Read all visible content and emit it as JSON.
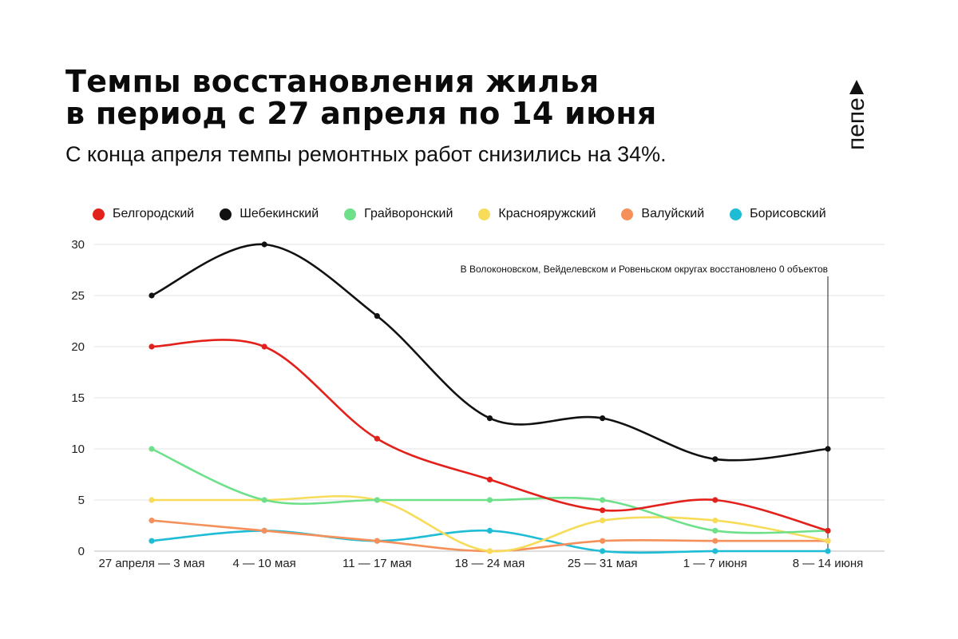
{
  "header": {
    "title_line1": "Темпы восстановления жилья",
    "title_line2": "в период с 27 апреля по 14 июня",
    "subtitle": "С конца апреля темпы ремонтных работ снизились на 34%.",
    "logo_text": "пепе"
  },
  "chart_data": {
    "type": "line",
    "title": "Темпы восстановления жилья в период с 27 апреля по 14 июня",
    "subtitle": "С конца апреля темпы ремонтных работ снизились на 34%.",
    "categories": [
      "27 апреля — 3 мая",
      "4 — 10 мая",
      "11 — 17 мая",
      "18 — 24 мая",
      "25 — 31 мая",
      "1 — 7 июня",
      "8 — 14 июня"
    ],
    "ylim": [
      0,
      30
    ],
    "yticks": [
      0,
      5,
      10,
      15,
      20,
      25,
      30
    ],
    "grid": true,
    "legend_position": "top",
    "series": [
      {
        "name": "Белгородский",
        "color": "#e3211c",
        "values": [
          20,
          20,
          11,
          7,
          4,
          5,
          2
        ]
      },
      {
        "name": "Шебекинский",
        "color": "#111111",
        "values": [
          25,
          30,
          23,
          13,
          13,
          9,
          10
        ]
      },
      {
        "name": "Грайворонский",
        "color": "#6ee08a",
        "values": [
          10,
          5,
          5,
          5,
          5,
          2,
          2
        ]
      },
      {
        "name": "Краснояружский",
        "color": "#f7dc5a",
        "values": [
          5,
          5,
          5,
          0,
          3,
          3,
          1
        ]
      },
      {
        "name": "Валуйский",
        "color": "#f5905a",
        "values": [
          3,
          2,
          1,
          0,
          1,
          1,
          1
        ]
      },
      {
        "name": "Борисовский",
        "color": "#1fbcd6",
        "values": [
          1,
          2,
          1,
          2,
          0,
          0,
          0
        ]
      }
    ],
    "annotation": {
      "text": "В Волоконовском, Вейделевском и Ровеньском округах восстановлено 0 объектов",
      "category_index": 6
    }
  }
}
